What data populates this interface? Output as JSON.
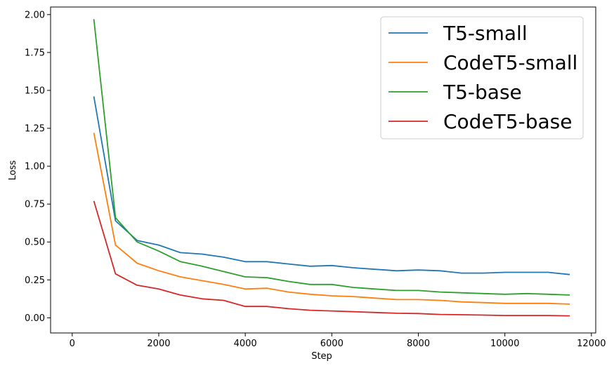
{
  "chart_data": {
    "type": "line",
    "title": "",
    "xlabel": "Step",
    "ylabel": "Loss",
    "xlim": [
      -500,
      12100
    ],
    "ylim": [
      -0.1,
      2.05
    ],
    "xticks": [
      0,
      2000,
      4000,
      6000,
      8000,
      10000,
      12000
    ],
    "yticks": [
      0.0,
      0.25,
      0.5,
      0.75,
      1.0,
      1.25,
      1.5,
      1.75,
      2.0
    ],
    "xtick_labels": [
      "0",
      "2000",
      "4000",
      "6000",
      "8000",
      "10000",
      "12000"
    ],
    "ytick_labels": [
      "0.00",
      "0.25",
      "0.50",
      "0.75",
      "1.00",
      "1.25",
      "1.50",
      "1.75",
      "2.00"
    ],
    "grid": false,
    "legend_position": "top-right",
    "x": [
      500,
      1000,
      1500,
      2000,
      2500,
      3000,
      3500,
      4000,
      4500,
      5000,
      5500,
      6000,
      6500,
      7000,
      7500,
      8000,
      8500,
      9000,
      9500,
      10000,
      10500,
      11000,
      11500
    ],
    "series": [
      {
        "name": "T5-small",
        "color": "#1f77b4",
        "values": [
          1.46,
          0.64,
          0.51,
          0.48,
          0.43,
          0.42,
          0.4,
          0.37,
          0.37,
          0.355,
          0.34,
          0.345,
          0.33,
          0.32,
          0.31,
          0.315,
          0.31,
          0.295,
          0.295,
          0.3,
          0.3,
          0.3,
          0.285
        ]
      },
      {
        "name": "CodeT5-small",
        "color": "#ff7f0e",
        "values": [
          1.22,
          0.48,
          0.36,
          0.31,
          0.27,
          0.245,
          0.22,
          0.19,
          0.195,
          0.17,
          0.155,
          0.145,
          0.14,
          0.13,
          0.12,
          0.12,
          0.115,
          0.105,
          0.1,
          0.095,
          0.095,
          0.095,
          0.09
        ]
      },
      {
        "name": "T5-base",
        "color": "#2ca02c",
        "values": [
          1.97,
          0.66,
          0.5,
          0.44,
          0.37,
          0.34,
          0.305,
          0.27,
          0.265,
          0.24,
          0.22,
          0.22,
          0.2,
          0.19,
          0.18,
          0.18,
          0.17,
          0.165,
          0.16,
          0.155,
          0.16,
          0.155,
          0.15
        ]
      },
      {
        "name": "CodeT5-base",
        "color": "#d62728",
        "values": [
          0.77,
          0.29,
          0.215,
          0.19,
          0.15,
          0.125,
          0.115,
          0.075,
          0.075,
          0.06,
          0.05,
          0.045,
          0.04,
          0.035,
          0.03,
          0.028,
          0.022,
          0.02,
          0.018,
          0.015,
          0.015,
          0.015,
          0.013
        ]
      }
    ]
  }
}
